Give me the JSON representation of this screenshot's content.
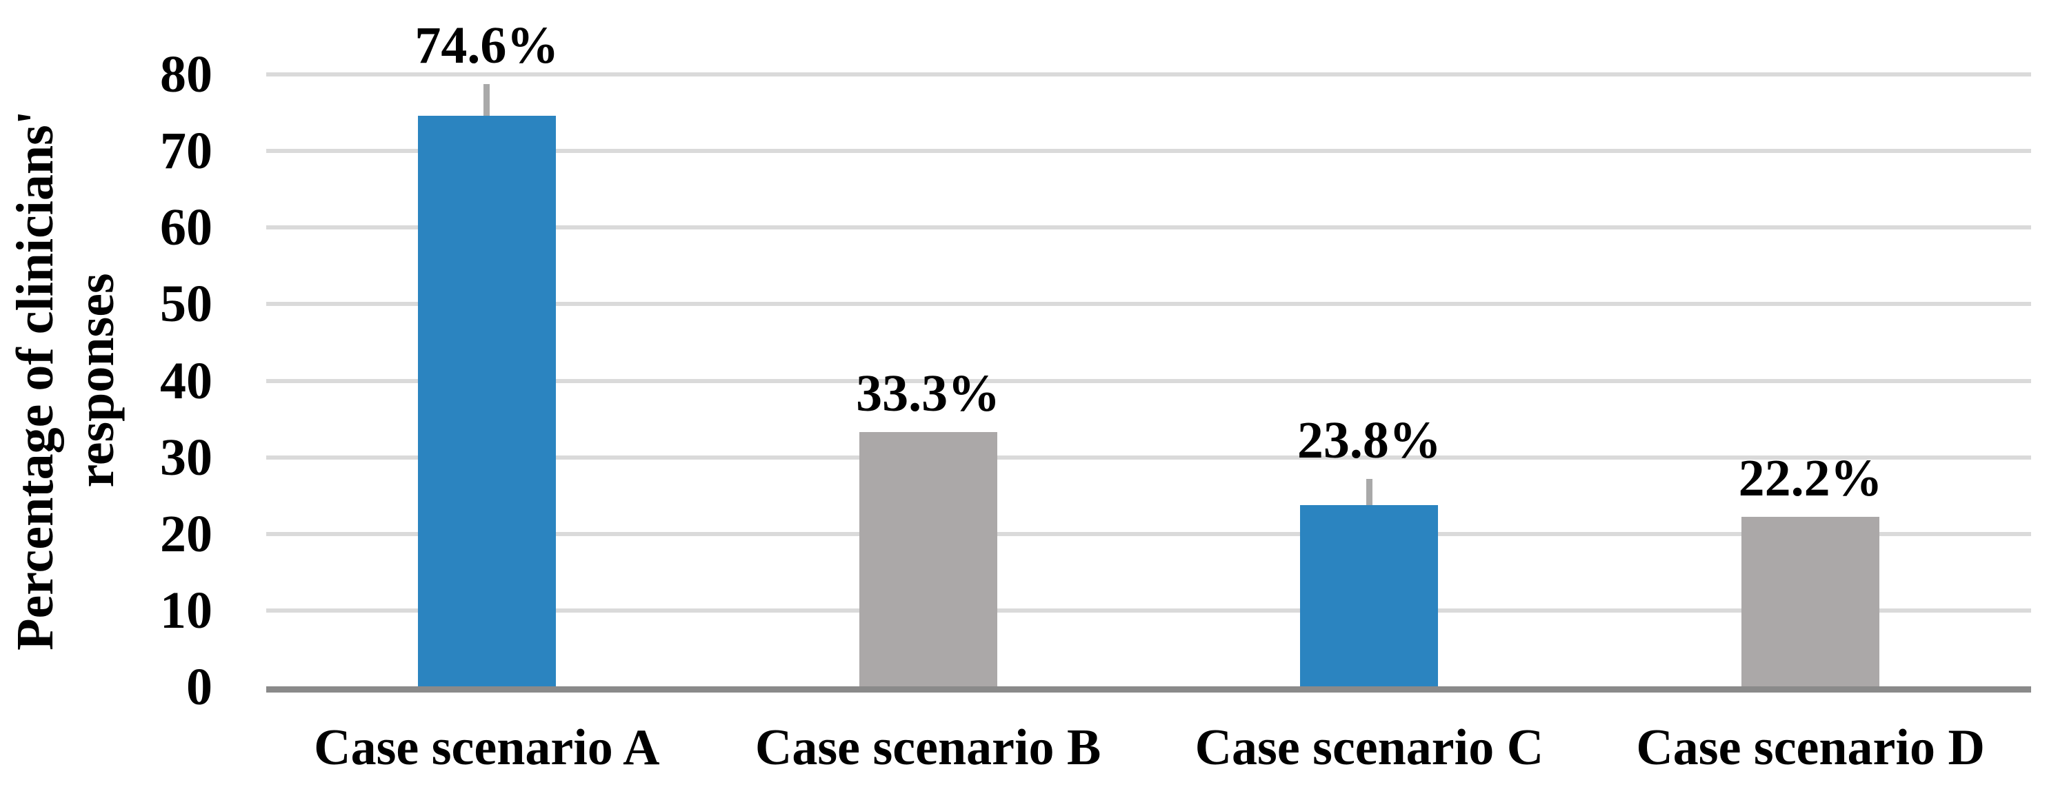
{
  "chart_data": {
    "type": "bar",
    "title": "",
    "categories": [
      "Case scenario A",
      "Case scenario B",
      "Case scenario C",
      "Case scenario D"
    ],
    "values": [
      74.6,
      33.3,
      23.8,
      22.2
    ],
    "data_labels": [
      "74.6%",
      "33.3%",
      "23.8%",
      "22.2%"
    ],
    "bar_colors": [
      "#2B84C0",
      "#ABA8A8",
      "#2B84C0",
      "#ABA8A8"
    ],
    "error_upper": [
      4.1,
      null,
      3.4,
      null
    ],
    "xlabel": "",
    "ylabel": "Percentage of clinicians' responses",
    "ylim": [
      0,
      80
    ],
    "yticks": [
      0,
      10,
      20,
      30,
      40,
      50,
      60,
      70,
      80
    ],
    "grid": "horizontal",
    "legend_position": "none",
    "colors": {
      "blue_series": "#2B84C0",
      "gray_series": "#ABA8A8",
      "gridline": "#DADADA",
      "axis_line": "#8A8A8A",
      "error_bar": "#A9A9A9",
      "text": "#000000",
      "background": "#FFFFFF"
    }
  }
}
